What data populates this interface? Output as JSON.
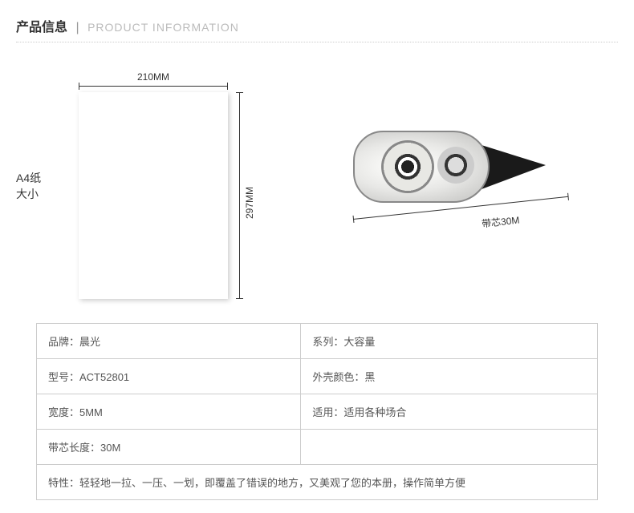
{
  "header": {
    "title_cn": "产品信息",
    "separator": "|",
    "title_en": "PRODUCT INFORMATION"
  },
  "diagram": {
    "a4_label_line1": "A4纸",
    "a4_label_line2": "大小",
    "width_label": "210MM",
    "height_label": "297MM",
    "tape_length_label": "带芯30M"
  },
  "specs": {
    "rows": [
      {
        "left": "品牌：晨光",
        "right": "系列：大容量"
      },
      {
        "left": "型号：ACT52801",
        "right": "外壳颜色：黑"
      },
      {
        "left": "宽度：5MM",
        "right": "适用：适用各种场合"
      },
      {
        "left": "带芯长度：30M",
        "right": ""
      }
    ],
    "feature": "特性：轻轻地一拉、一压、一划，即覆盖了错误的地方，又美观了您的本册，操作简单方便"
  }
}
